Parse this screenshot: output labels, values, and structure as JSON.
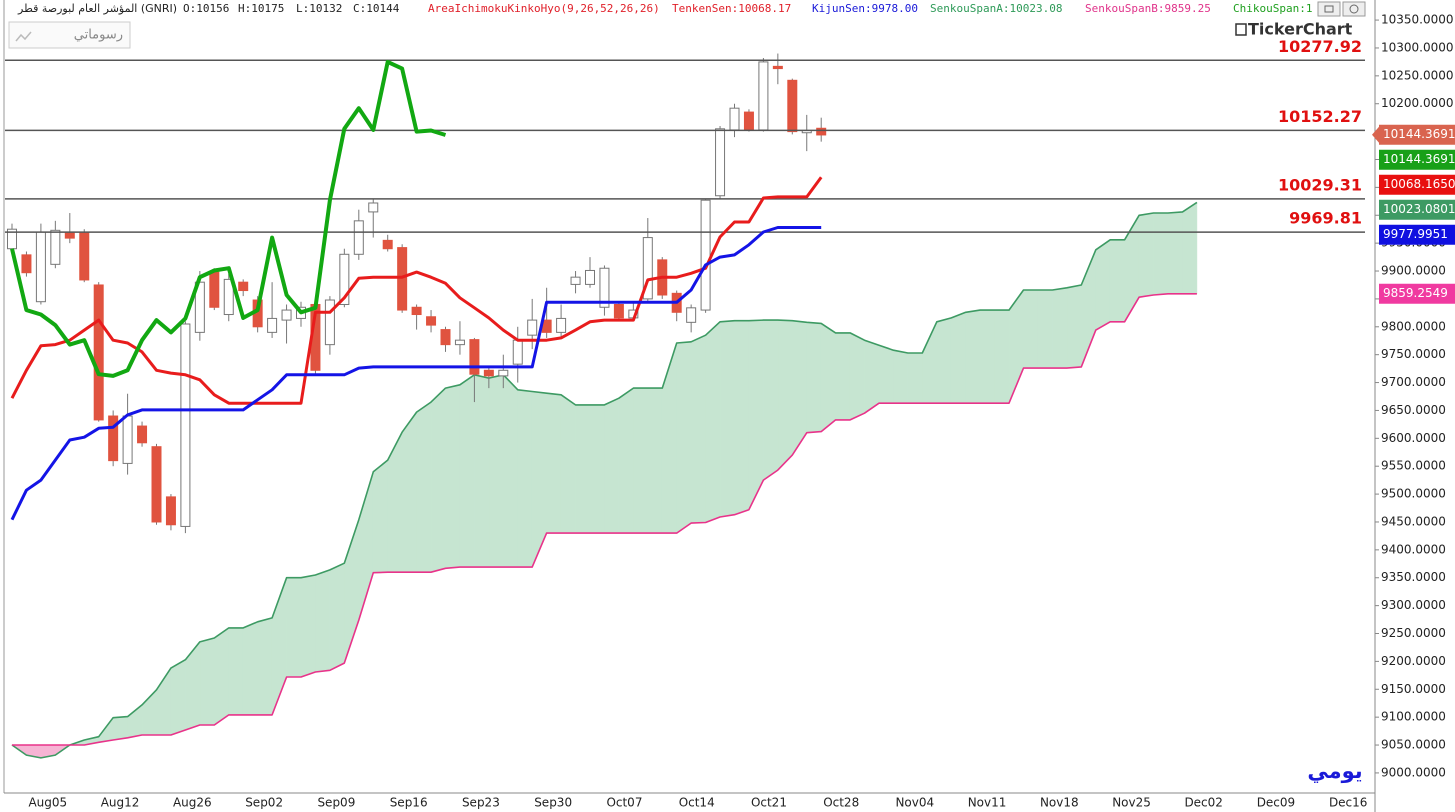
{
  "chart_data": {
    "type": "candlestick",
    "title": "المؤشر العام لبورصة قطر (GNRI)",
    "ohlc_labels": [
      "O:10156",
      "H:10175",
      "L:10132",
      "C:10144"
    ],
    "indicators": [
      {
        "text": "AreaIchimokuKinkoHyo(9,26,52,26,26)",
        "color": "#e0202a"
      },
      {
        "text": "TenkenSen:10068.17",
        "color": "#e0202a"
      },
      {
        "text": "KijunSen:9978.00",
        "color": "#1a1ad8"
      },
      {
        "text": "SenkouSpanA:10023.08",
        "color": "#2e9a58"
      },
      {
        "text": "SenkouSpanB:9859.25",
        "color": "#e0338a"
      },
      {
        "text": "ChikouSpan:1",
        "color": "#20a020"
      }
    ],
    "button_label": "رسوماتي",
    "brand": "TickerChart",
    "period_label": "يومي",
    "categories": [
      null,
      "Aug05",
      null,
      null,
      null,
      null,
      "Aug12",
      null,
      null,
      null,
      null,
      "Aug26",
      null,
      null,
      null,
      null,
      "Sep02",
      null,
      null,
      null,
      null,
      "Sep09",
      null,
      null,
      null,
      null,
      "Sep16",
      null,
      null,
      null,
      null,
      "Sep23",
      null,
      null,
      null,
      null,
      "Sep30",
      null,
      null,
      null,
      null,
      "Oct07",
      null,
      null,
      null,
      null,
      "Oct14",
      null,
      null,
      null,
      null,
      "Oct21",
      null,
      null,
      null,
      null,
      "Oct28",
      null,
      null,
      null,
      null,
      "Nov04",
      null,
      null,
      null,
      null,
      "Nov11",
      null,
      null,
      null,
      null,
      "Nov18",
      null,
      null,
      null,
      null,
      "Nov25",
      null,
      null,
      null,
      null,
      "Dec02",
      null,
      null,
      null,
      null,
      "Dec09",
      null,
      null,
      null,
      null,
      "Dec16",
      null,
      null,
      null
    ],
    "open": [
      9940,
      9929,
      9845,
      9912,
      9968,
      9968,
      9875,
      9640,
      9555,
      9622,
      9585,
      9495,
      9442,
      9790,
      9898,
      9822,
      9880,
      9848,
      9790,
      9812,
      9815,
      9840,
      9768,
      9840,
      9930,
      10006,
      9955,
      9942,
      9835,
      9818,
      9795,
      9768,
      9777,
      9722,
      9712,
      9733,
      9785,
      9812,
      9790,
      9876,
      9876,
      9835,
      9840,
      9816,
      9850,
      9920,
      9860,
      9808,
      9830,
      10035,
      10153,
      10185,
      10153,
      10267,
      10242,
      10148,
      10156,
      null,
      null,
      null,
      null,
      null,
      null,
      null,
      null,
      null,
      null,
      null,
      null,
      null,
      null,
      null,
      null,
      null,
      null,
      null,
      null,
      null,
      null,
      null,
      null,
      null,
      null,
      null,
      null,
      null,
      null,
      null,
      null,
      null,
      null,
      null,
      null,
      null,
      null
    ],
    "high": [
      9985,
      9935,
      9985,
      9990,
      10004,
      9975,
      9880,
      9650,
      9680,
      9630,
      9590,
      9500,
      9810,
      9900,
      9905,
      9895,
      9885,
      9855,
      9880,
      9840,
      9845,
      9845,
      9855,
      9940,
      10010,
      10030,
      9965,
      9948,
      9840,
      9830,
      9800,
      9810,
      9780,
      9728,
      9750,
      9800,
      9850,
      9870,
      9840,
      9900,
      9925,
      9910,
      9845,
      9845,
      9995,
      9925,
      9865,
      9840,
      10030,
      10160,
      10200,
      10190,
      10282,
      10290,
      10245,
      10180,
      10175,
      null,
      null,
      null,
      null,
      null,
      null,
      null,
      null,
      null,
      null,
      null,
      null,
      null,
      null,
      null,
      null,
      null,
      null,
      null,
      null,
      null,
      null,
      null,
      null,
      null,
      null,
      null,
      null,
      null,
      null,
      null,
      null,
      null,
      null,
      null,
      null,
      null,
      null
    ],
    "low": [
      9935,
      9890,
      9840,
      9905,
      9950,
      9880,
      9630,
      9550,
      9535,
      9585,
      9445,
      9435,
      9430,
      9775,
      9830,
      9810,
      9855,
      9790,
      9780,
      9770,
      9800,
      9715,
      9750,
      9835,
      9920,
      9960,
      9935,
      9825,
      9795,
      9790,
      9755,
      9750,
      9665,
      9690,
      9690,
      9700,
      9760,
      9780,
      9780,
      9860,
      9870,
      9820,
      9810,
      9810,
      9845,
      9850,
      9810,
      9790,
      9825,
      10030,
      10140,
      10150,
      10150,
      10235,
      10145,
      10115,
      10132,
      null,
      null,
      null,
      null,
      null,
      null,
      null,
      null,
      null,
      null,
      null,
      null,
      null,
      null,
      null,
      null,
      null,
      null,
      null,
      null,
      null,
      null,
      null,
      null,
      null,
      null,
      null,
      null,
      null,
      null,
      null,
      null,
      null,
      null,
      null,
      null,
      null,
      null
    ],
    "close": [
      9975,
      9897,
      9970,
      9973,
      9959,
      9884,
      9633,
      9560,
      9640,
      9592,
      9450,
      9445,
      9805,
      9880,
      9835,
      9885,
      9865,
      9800,
      9815,
      9830,
      9835,
      9722,
      9848,
      9930,
      9990,
      10022,
      9940,
      9830,
      9822,
      9803,
      9768,
      9776,
      9715,
      9712,
      9722,
      9776,
      9812,
      9790,
      9815,
      9889,
      9901,
      9905,
      9816,
      9830,
      9960,
      9857,
      9826,
      9834,
      10027,
      10155,
      10192,
      10153,
      10275,
      10263,
      10150,
      10152,
      10144,
      null,
      null,
      null,
      null,
      null,
      null,
      null,
      null,
      null,
      null,
      null,
      null,
      null,
      null,
      null,
      null,
      null,
      null,
      null,
      null,
      null,
      null,
      null,
      null,
      null,
      null,
      null,
      null,
      null,
      null,
      null,
      null,
      null,
      null,
      null,
      null,
      null,
      null
    ],
    "up_color": "#ffffff",
    "down_color": "#e0533f",
    "wick_color": "#777777",
    "cloud": {
      "span_a": {
        "color": "#3d9a63",
        "width": 1.6,
        "values": [
          9050,
          9032,
          9027,
          9032,
          9050,
          9059,
          9065,
          9099,
          9101,
          9122,
          9149,
          9188,
          9203,
          9235,
          9242,
          9260,
          9260,
          9271,
          9278,
          9350,
          9350,
          9355,
          9364,
          9376,
          9454,
          9540,
          9561,
          9611,
          9647,
          9665,
          9690,
          9696,
          9714,
          9708,
          9714,
          9687,
          9684,
          9681,
          9678,
          9660,
          9660,
          9660,
          9672,
          9690,
          9690,
          9690,
          9771,
          9773,
          9785,
          9809,
          9811,
          9811,
          9812,
          9812,
          9811,
          9808,
          9806,
          9789,
          9789,
          9776,
          9767,
          9758,
          9753,
          9753,
          9809,
          9816,
          9826,
          9830,
          9830,
          9830,
          9866,
          9866,
          9866,
          9870,
          9875,
          9938,
          9956,
          9956,
          10000,
          10004,
          10004,
          10006,
          10023.08,
          null,
          null,
          null,
          null,
          null,
          null,
          null,
          null,
          null,
          null,
          null,
          null
        ]
      },
      "span_b": {
        "color": "#e8338a",
        "width": 1.6,
        "values": [
          9050,
          9050,
          9050,
          9050,
          9050,
          9050,
          9055,
          9059,
          9063,
          9068,
          9068,
          9068,
          9077,
          9086,
          9086,
          9104,
          9104,
          9104,
          9104,
          9172,
          9172,
          9181,
          9184,
          9197,
          9274,
          9359,
          9360,
          9360,
          9360,
          9360,
          9367,
          9369,
          9369,
          9369,
          9369,
          9369,
          9369,
          9430,
          9430,
          9430,
          9430,
          9430,
          9430,
          9430,
          9430,
          9430,
          9430,
          9448,
          9449,
          9459,
          9463,
          9472,
          9525,
          9543,
          9570,
          9610,
          9612,
          9633,
          9633,
          9645,
          9663,
          9663,
          9663,
          9663,
          9663,
          9663,
          9663,
          9663,
          9663,
          9663,
          9726,
          9726,
          9726,
          9726,
          9728,
          9794,
          9809,
          9809,
          9853,
          9857,
          9859.25,
          9859.25,
          9859.25,
          null,
          null,
          null,
          null,
          null,
          null,
          null,
          null,
          null,
          null,
          null,
          null
        ]
      },
      "fill_colors": [
        "#c6e5d1",
        "#f6b4d4"
      ]
    },
    "lines": [
      {
        "color": "#e81c1c",
        "width": 3,
        "values": [
          9672,
          9722,
          9766,
          9768,
          9776,
          9794,
          9812,
          9776,
          9771,
          9755,
          9722,
          9717,
          9714,
          9705,
          9678,
          9663,
          9663,
          9663,
          9663,
          9663,
          9663,
          9826,
          9826,
          9852,
          9887,
          9889,
          9889,
          9889,
          9898,
          9889,
          9878,
          9852,
          9834,
          9816,
          9794,
          9776,
          9776,
          9776,
          9780,
          9794,
          9809,
          9812,
          9812,
          9812,
          9884,
          9889,
          9889,
          9896,
          9905,
          9961,
          9988,
          9988,
          10031,
          10033,
          10033,
          10033,
          10068.17,
          null,
          null,
          null,
          null,
          null,
          null,
          null,
          null,
          null,
          null,
          null,
          null,
          null,
          null,
          null,
          null,
          null,
          null,
          null,
          null,
          null,
          null,
          null,
          null,
          null,
          null,
          null,
          null,
          null,
          null,
          null,
          null,
          null,
          null,
          null,
          null,
          null,
          null
        ]
      },
      {
        "color": "#1414e6",
        "width": 3,
        "values": [
          9454,
          9507,
          9525,
          9561,
          9597,
          9602,
          9618,
          9620,
          9642,
          9651,
          9651,
          9651,
          9651,
          9651,
          9651,
          9651,
          9651,
          9669,
          9687,
          9714,
          9714,
          9714,
          9714,
          9714,
          9726,
          9728,
          9728,
          9728,
          9728,
          9728,
          9728,
          9728,
          9728,
          9728,
          9728,
          9728,
          9728,
          9844,
          9844,
          9844,
          9844,
          9844,
          9844,
          9844,
          9844,
          9844,
          9844,
          9866,
          9911,
          9925,
          9929,
          9947,
          9970,
          9978,
          9978,
          9978,
          9978,
          null,
          null,
          null,
          null,
          null,
          null,
          null,
          null,
          null,
          null,
          null,
          null,
          null,
          null,
          null,
          null,
          null,
          null,
          null,
          null,
          null,
          null,
          null,
          null,
          null,
          null,
          null,
          null,
          null,
          null,
          null,
          null,
          null,
          null,
          null,
          null,
          null,
          null
        ]
      },
      {
        "color": "#12a812",
        "width": 4,
        "values": [
          9940,
          9830,
          9822,
          9803,
          9768,
          9776,
          9715,
          9712,
          9722,
          9776,
          9812,
          9790,
          9815,
          9889,
          9901,
          9905,
          9816,
          9830,
          9960,
          9857,
          9826,
          9834,
          10027,
          10155,
          10192,
          10153,
          10275,
          10263,
          10150,
          10152,
          10144,
          null,
          null,
          null,
          null,
          null,
          null,
          null,
          null,
          null,
          null,
          null,
          null,
          null,
          null,
          null,
          null,
          null,
          null,
          null,
          null,
          null,
          null,
          null,
          null,
          null,
          null,
          null,
          null,
          null,
          null,
          null,
          null,
          null,
          null,
          null,
          null,
          null,
          null,
          null,
          null,
          null,
          null,
          null,
          null,
          null,
          null,
          null,
          null,
          null,
          null,
          null,
          null,
          null,
          null,
          null,
          null,
          null,
          null,
          null,
          null,
          null,
          null,
          null,
          null
        ]
      }
    ],
    "levels": [
      10277.92,
      10152.27,
      10029.31,
      9969.81
    ],
    "level_color": "#555555",
    "level_label_color": "#e01010",
    "price_tags": {
      "values": [
        10144.3691,
        10144.3691,
        10068.165,
        10023.0801,
        9977.9951,
        9859.2549
      ],
      "value_labels": [
        "10144.3691",
        "10144.3691",
        "10068.1650",
        "10023.0801",
        "9977.9951",
        "9859.2549"
      ],
      "colors": [
        "#d9644f",
        "#18a018",
        "#e81010",
        "#3d9a63",
        "#1010e0",
        "#f03aa0"
      ]
    },
    "ylim": [
      8964,
      10386
    ],
    "yticks": [
      {
        "value": 9000,
        "label": "9000.0000"
      },
      {
        "value": 9050,
        "label": "9050.0000"
      },
      {
        "value": 9100,
        "label": "9100.0000"
      },
      {
        "value": 9150,
        "label": "9150.0000"
      },
      {
        "value": 9200,
        "label": "9200.0000"
      },
      {
        "value": 9250,
        "label": "9250.0000"
      },
      {
        "value": 9300,
        "label": "9300.0000"
      },
      {
        "value": 9350,
        "label": "9350.0000"
      },
      {
        "value": 9400,
        "label": "9400.0000"
      },
      {
        "value": 9450,
        "label": "9450.0000"
      },
      {
        "value": 9500,
        "label": "9500.0000"
      },
      {
        "value": 9550,
        "label": "9550.0000"
      },
      {
        "value": 9600,
        "label": "9600.0000"
      },
      {
        "value": 9650,
        "label": "9650.0000"
      },
      {
        "value": 9700,
        "label": "9700.0000"
      },
      {
        "value": 9750,
        "label": "9750.0000"
      },
      {
        "value": 9800,
        "label": "9800.0000"
      },
      {
        "value": 9850,
        "label": "9850.0000"
      },
      {
        "value": 9900,
        "label": "9900.0000"
      },
      {
        "value": 9950,
        "label": "9950.0000"
      },
      {
        "value": 10000,
        "label": "10000.0000"
      },
      {
        "value": 10050,
        "label": "10050.0000"
      },
      {
        "value": 10100,
        "label": "10100.0000"
      },
      {
        "value": 10150,
        "label": "10150.0000"
      },
      {
        "value": 10200,
        "label": "10200.0000"
      },
      {
        "value": 10250,
        "label": "10250.0000"
      },
      {
        "value": 10300,
        "label": "10300.0000"
      },
      {
        "value": 10350,
        "label": "10350.0000"
      }
    ]
  }
}
